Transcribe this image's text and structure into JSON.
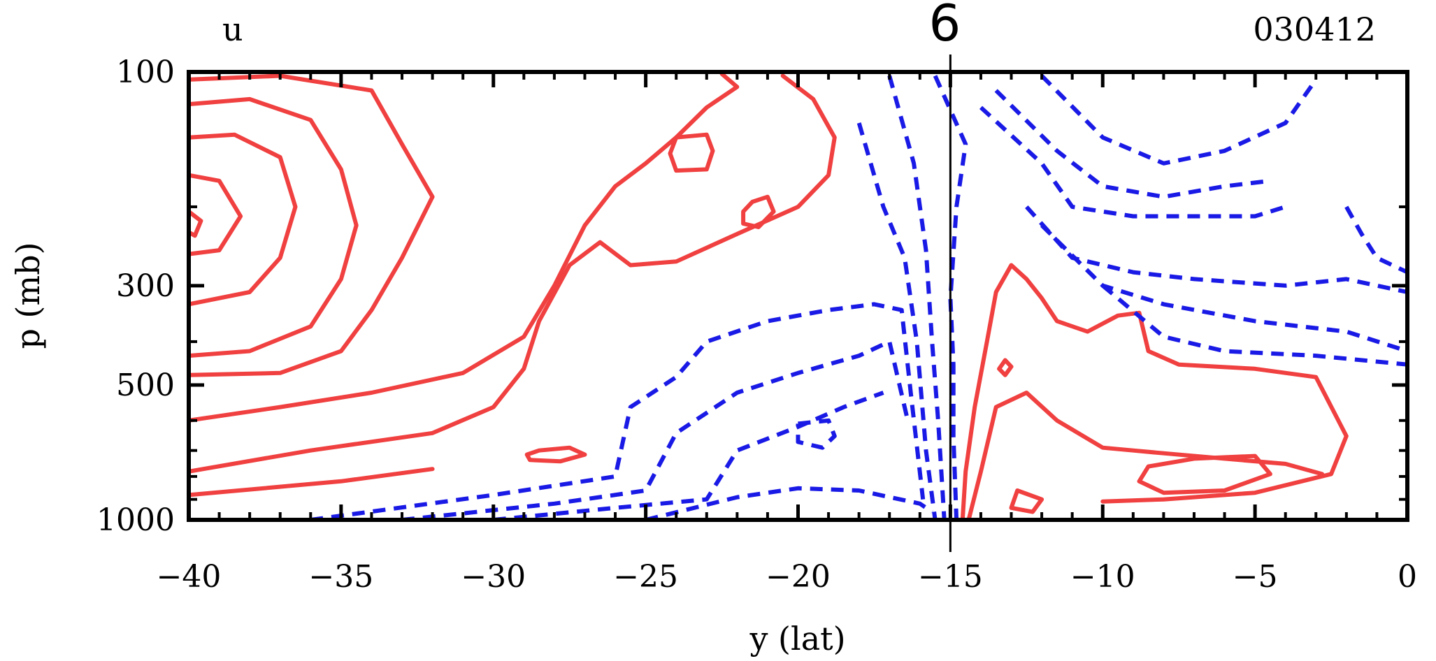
{
  "chart_data": {
    "type": "contour",
    "title": "u",
    "date_label": "030412",
    "marker": {
      "label": "6",
      "x": -15
    },
    "xlabel": "y (lat)",
    "ylabel": "p (mb)",
    "xlim": [
      -40,
      0
    ],
    "ylim": [
      1000,
      100
    ],
    "y_scale": "log",
    "x_ticks": [
      -40,
      -35,
      -30,
      -25,
      -20,
      -15,
      -10,
      -5,
      0
    ],
    "x_tick_labels": [
      "−40",
      "−35",
      "−30",
      "−25",
      "−20",
      "−15",
      "−10",
      "−5",
      "0"
    ],
    "y_ticks": [
      100,
      300,
      500,
      1000
    ],
    "y_tick_labels": [
      "100",
      "300",
      "500",
      "1000"
    ],
    "colors": {
      "positive": "#f04040",
      "negative": "#1a1ae6",
      "axis": "#000000"
    },
    "contours": {
      "positive": [
        [
          [
            -40,
            104
          ],
          [
            -37,
            102
          ],
          [
            -34,
            110
          ],
          [
            -33,
            145
          ],
          [
            -32,
            190
          ],
          [
            -33,
            260
          ],
          [
            -34,
            340
          ],
          [
            -35,
            420
          ],
          [
            -37,
            470
          ],
          [
            -40,
            475
          ]
        ],
        [
          [
            -40,
            118
          ],
          [
            -38,
            115
          ],
          [
            -36,
            128
          ],
          [
            -35,
            165
          ],
          [
            -34.5,
            220
          ],
          [
            -35,
            290
          ],
          [
            -36,
            370
          ],
          [
            -38,
            420
          ],
          [
            -40,
            430
          ]
        ],
        [
          [
            -40,
            140
          ],
          [
            -38.5,
            138
          ],
          [
            -37,
            155
          ],
          [
            -36.5,
            200
          ],
          [
            -37,
            260
          ],
          [
            -38,
            310
          ],
          [
            -40,
            330
          ]
        ],
        [
          [
            -40,
            170
          ],
          [
            -39,
            175
          ],
          [
            -38.3,
            210
          ],
          [
            -39,
            250
          ],
          [
            -40,
            255
          ]
        ],
        [
          [
            -40,
            205
          ],
          [
            -39.6,
            215
          ],
          [
            -39.8,
            232
          ],
          [
            -40,
            228
          ]
        ],
        [
          [
            -40,
            600
          ],
          [
            -37,
            560
          ],
          [
            -34,
            520
          ],
          [
            -31,
            470
          ],
          [
            -29,
            390
          ],
          [
            -28,
            300
          ],
          [
            -27,
            220
          ],
          [
            -26,
            180
          ],
          [
            -25,
            160
          ],
          [
            -24,
            140
          ],
          [
            -23,
            120
          ],
          [
            -22,
            108
          ],
          [
            -22.5,
            101
          ]
        ],
        [
          [
            -40,
            780
          ],
          [
            -36,
            700
          ],
          [
            -32,
            640
          ],
          [
            -30,
            560
          ],
          [
            -29,
            460
          ],
          [
            -28.5,
            360
          ],
          [
            -27.5,
            270
          ],
          [
            -26.5,
            240
          ],
          [
            -25.5,
            270
          ],
          [
            -24,
            265
          ],
          [
            -22,
            230
          ],
          [
            -20,
            200
          ],
          [
            -19,
            170
          ],
          [
            -18.8,
            140
          ],
          [
            -19.5,
            115
          ],
          [
            -20.5,
            102
          ]
        ],
        [
          [
            -40,
            880
          ],
          [
            -35,
            820
          ],
          [
            -32,
            770
          ]
        ],
        [
          [
            -24,
            140
          ],
          [
            -23,
            138
          ],
          [
            -22.8,
            150
          ],
          [
            -23,
            165
          ],
          [
            -24,
            166
          ],
          [
            -24.2,
            152
          ],
          [
            -24,
            140
          ]
        ],
        [
          [
            -21.5,
            195
          ],
          [
            -21,
            190
          ],
          [
            -20.8,
            205
          ],
          [
            -21.3,
            222
          ],
          [
            -21.8,
            218
          ],
          [
            -21.8,
            205
          ],
          [
            -21.5,
            195
          ]
        ],
        [
          [
            -28.5,
            700
          ],
          [
            -27.5,
            690
          ],
          [
            -27,
            715
          ],
          [
            -27.8,
            740
          ],
          [
            -28.8,
            735
          ],
          [
            -28.9,
            715
          ],
          [
            -28.5,
            700
          ]
        ],
        [
          [
            -14.6,
            1000
          ],
          [
            -14.5,
            780
          ],
          [
            -14.2,
            560
          ],
          [
            -13.8,
            400
          ],
          [
            -13.5,
            310
          ],
          [
            -13,
            270
          ],
          [
            -12.5,
            290
          ],
          [
            -12,
            320
          ],
          [
            -11.5,
            360
          ],
          [
            -10.5,
            380
          ],
          [
            -9.5,
            350
          ],
          [
            -8.8,
            345
          ],
          [
            -8.5,
            420
          ],
          [
            -7.5,
            450
          ],
          [
            -5,
            460
          ],
          [
            -3,
            480
          ],
          [
            -2,
            650
          ],
          [
            -2.5,
            790
          ],
          [
            -5,
            870
          ],
          [
            -8,
            900
          ],
          [
            -10,
            910
          ]
        ],
        [
          [
            -14.4,
            1000
          ],
          [
            -14,
            780
          ],
          [
            -13.5,
            560
          ],
          [
            -12.5,
            520
          ],
          [
            -11.5,
            600
          ],
          [
            -10,
            690
          ],
          [
            -9,
            700
          ],
          [
            -8,
            710
          ],
          [
            -6,
            730
          ],
          [
            -4,
            750
          ],
          [
            -2.8,
            790
          ]
        ],
        [
          [
            -12.8,
            860
          ],
          [
            -12,
            900
          ],
          [
            -12.3,
            960
          ],
          [
            -13,
            940
          ],
          [
            -12.8,
            860
          ]
        ],
        [
          [
            -13.2,
            440
          ],
          [
            -13,
            455
          ],
          [
            -13.2,
            475
          ],
          [
            -13.4,
            460
          ],
          [
            -13.2,
            440
          ]
        ],
        [
          [
            -8.5,
            760
          ],
          [
            -7,
            730
          ],
          [
            -5,
            720
          ],
          [
            -4.5,
            790
          ],
          [
            -6,
            860
          ],
          [
            -8,
            870
          ],
          [
            -8.8,
            820
          ],
          [
            -8.5,
            760
          ]
        ]
      ],
      "negative": [
        [
          [
            -15.5,
            102
          ],
          [
            -14.5,
            145
          ],
          [
            -14.8,
            200
          ],
          [
            -15,
            320
          ],
          [
            -14.9,
            450
          ],
          [
            -14.9,
            650
          ],
          [
            -14.8,
            1000
          ]
        ],
        [
          [
            -17,
            102
          ],
          [
            -16.2,
            160
          ],
          [
            -15.8,
            250
          ],
          [
            -15.6,
            400
          ],
          [
            -15.4,
            600
          ],
          [
            -15.2,
            1000
          ]
        ],
        [
          [
            -18,
            130
          ],
          [
            -17.2,
            200
          ],
          [
            -16.5,
            260
          ],
          [
            -16.1,
            400
          ],
          [
            -15.8,
            700
          ],
          [
            -15.5,
            1000
          ]
        ],
        [
          [
            -25,
            1000
          ],
          [
            -22,
            890
          ],
          [
            -20,
            850
          ],
          [
            -18,
            860
          ],
          [
            -16,
            920
          ],
          [
            -15.6,
            960
          ]
        ],
        [
          [
            -36,
            1000
          ],
          [
            -30,
            880
          ],
          [
            -26,
            800
          ],
          [
            -25.5,
            560
          ],
          [
            -24,
            480
          ],
          [
            -23,
            400
          ],
          [
            -21,
            360
          ],
          [
            -19,
            340
          ],
          [
            -17.5,
            330
          ],
          [
            -16.6,
            340
          ],
          [
            -16.3,
            520
          ],
          [
            -15.9,
            900
          ]
        ],
        [
          [
            -33,
            1000
          ],
          [
            -28,
            920
          ],
          [
            -25,
            860
          ],
          [
            -24,
            640
          ],
          [
            -22,
            520
          ],
          [
            -20,
            470
          ],
          [
            -18,
            430
          ],
          [
            -17,
            400
          ],
          [
            -16.4,
            600
          ]
        ],
        [
          [
            -30,
            1000
          ],
          [
            -26,
            940
          ],
          [
            -23,
            900
          ],
          [
            -22,
            700
          ],
          [
            -20,
            620
          ],
          [
            -18.5,
            560
          ],
          [
            -17.2,
            520
          ]
        ],
        [
          [
            -20,
            610
          ],
          [
            -19,
            600
          ],
          [
            -18.8,
            650
          ],
          [
            -19.2,
            690
          ],
          [
            -20,
            670
          ],
          [
            -20,
            610
          ]
        ],
        [
          [
            -14,
            120
          ],
          [
            -12,
            160
          ],
          [
            -11,
            200
          ],
          [
            -9,
            210
          ],
          [
            -7,
            210
          ],
          [
            -5,
            210
          ],
          [
            -4,
            200
          ]
        ],
        [
          [
            -13.5,
            110
          ],
          [
            -11.5,
            150
          ],
          [
            -10,
            180
          ],
          [
            -8,
            190
          ],
          [
            -6,
            180
          ],
          [
            -4.5,
            175
          ]
        ],
        [
          [
            -12,
            102
          ],
          [
            -10,
            140
          ],
          [
            -8,
            160
          ],
          [
            -6,
            150
          ],
          [
            -4,
            130
          ],
          [
            -3,
            104
          ]
        ],
        [
          [
            -12.5,
            200
          ],
          [
            -11,
            260
          ],
          [
            -9,
            280
          ],
          [
            -7,
            290
          ],
          [
            -4,
            300
          ],
          [
            -2,
            290
          ],
          [
            0,
            310
          ]
        ],
        [
          [
            -12,
            220
          ],
          [
            -10,
            300
          ],
          [
            -8,
            330
          ],
          [
            -5,
            360
          ],
          [
            -2,
            380
          ],
          [
            0,
            420
          ]
        ],
        [
          [
            -10,
            300
          ],
          [
            -8,
            390
          ],
          [
            -6,
            420
          ],
          [
            -3,
            430
          ],
          [
            0,
            450
          ]
        ],
        [
          [
            -2,
            200
          ],
          [
            -1.5,
            230
          ],
          [
            -1,
            260
          ],
          [
            0,
            280
          ]
        ]
      ]
    }
  }
}
